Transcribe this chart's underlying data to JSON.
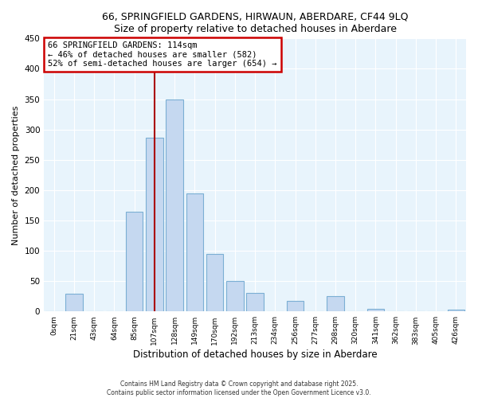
{
  "title": "66, SPRINGFIELD GARDENS, HIRWAUN, ABERDARE, CF44 9LQ",
  "subtitle": "Size of property relative to detached houses in Aberdare",
  "xlabel": "Distribution of detached houses by size in Aberdare",
  "ylabel": "Number of detached properties",
  "bar_labels": [
    "0sqm",
    "21sqm",
    "43sqm",
    "64sqm",
    "85sqm",
    "107sqm",
    "128sqm",
    "149sqm",
    "170sqm",
    "192sqm",
    "213sqm",
    "234sqm",
    "256sqm",
    "277sqm",
    "298sqm",
    "320sqm",
    "341sqm",
    "362sqm",
    "383sqm",
    "405sqm",
    "426sqm"
  ],
  "bar_values": [
    1,
    29,
    0,
    0,
    165,
    287,
    350,
    195,
    95,
    50,
    30,
    0,
    18,
    0,
    25,
    0,
    5,
    0,
    0,
    0,
    3
  ],
  "bar_color": "#c5d8f0",
  "bar_edge_color": "#7bafd4",
  "vline_x": 5,
  "vline_color": "#aa0000",
  "annotation_text": "66 SPRINGFIELD GARDENS: 114sqm\n← 46% of detached houses are smaller (582)\n52% of semi-detached houses are larger (654) →",
  "annotation_bbox_color": "white",
  "annotation_bbox_edge": "#cc0000",
  "ylim": [
    0,
    450
  ],
  "yticks": [
    0,
    50,
    100,
    150,
    200,
    250,
    300,
    350,
    400,
    450
  ],
  "bg_color": "#e8f4fc",
  "footer1": "Contains HM Land Registry data © Crown copyright and database right 2025.",
  "footer2": "Contains public sector information licensed under the Open Government Licence v3.0.",
  "title_fontsize": 9,
  "subtitle_fontsize": 8.5
}
